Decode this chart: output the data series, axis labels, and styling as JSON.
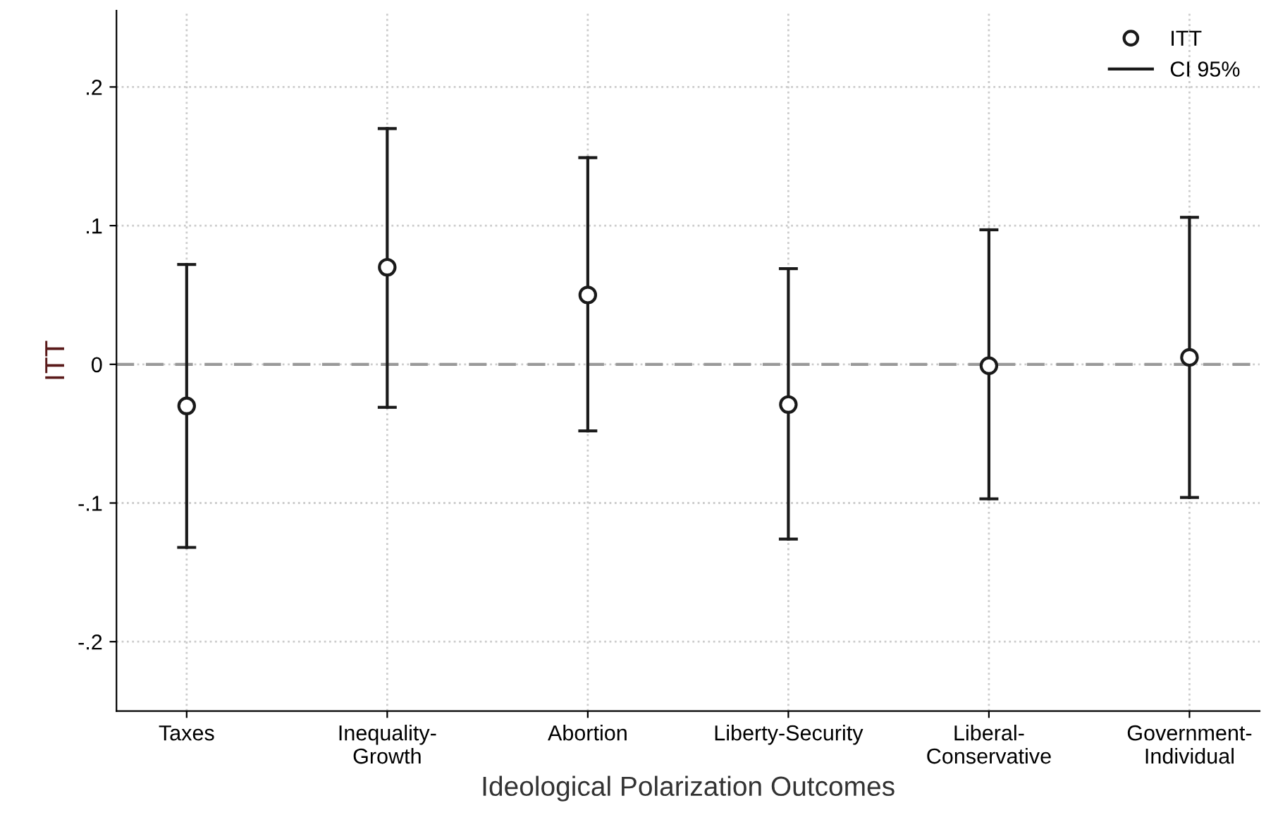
{
  "chart_data": {
    "type": "scatter",
    "xlabel": "Ideological Polarization Outcomes",
    "ylabel": "ITT",
    "categories": [
      "Taxes",
      "Inequality-\nGrowth",
      "Abortion",
      "Liberty-Security",
      "Liberal-\nConservative",
      "Government-\nIndividual"
    ],
    "series": [
      {
        "name": "ITT",
        "color": "#1a1a1a",
        "values": [
          -0.03,
          0.07,
          0.05,
          -0.029,
          -0.001,
          0.005
        ],
        "errors": [
          [
            -0.132,
            0.072
          ],
          [
            -0.031,
            0.17
          ],
          [
            -0.048,
            0.149
          ],
          [
            -0.126,
            0.069
          ],
          [
            -0.097,
            0.097
          ],
          [
            -0.096,
            0.106
          ]
        ]
      }
    ],
    "annotations": [
      "CI 95%"
    ],
    "ylim": [
      -0.25,
      0.255
    ],
    "yticks": [
      {
        "value": -0.2,
        "label": "-.2"
      },
      {
        "value": -0.1,
        "label": "-.1"
      },
      0,
      {
        "value": 0.1,
        "label": ".1"
      },
      {
        "value": 0.2,
        "label": ".2"
      }
    ],
    "ref_lines": [
      {
        "axis": "y",
        "value": 0,
        "color": "#999999",
        "line_style": "dashed"
      }
    ],
    "grid": true,
    "legend": "top right",
    "marker": "circle"
  }
}
